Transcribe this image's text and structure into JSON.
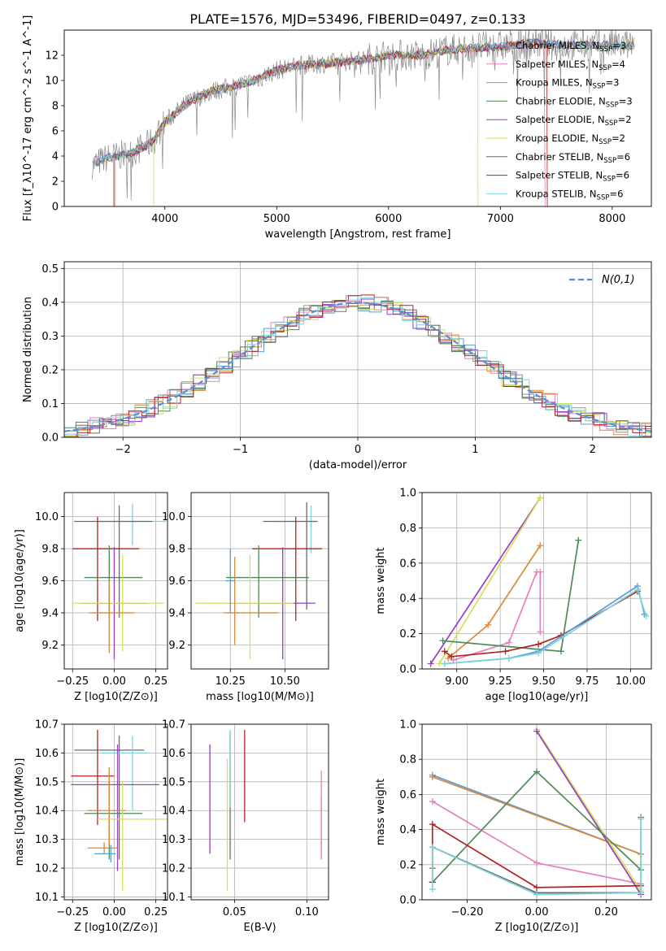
{
  "colors": {
    "Chabrier MILES": "#5a9bd4",
    "Salpeter MILES": "#e87fbf",
    "Kroupa MILES": "#d98a3a",
    "Chabrier ELODIE": "#4d8a5a",
    "Salpeter ELODIE": "#9a3dc1",
    "Kroupa ELODIE": "#d4e05a",
    "Chabrier STELIB": "#6b6b6b",
    "Salpeter STELIB": "#b22222",
    "Kroupa STELIB": "#7fd3d8",
    "gauss": "#5a8fd6"
  },
  "chart_data": [
    {
      "type": "line",
      "panel": "spectrum",
      "title": "PLATE=1576, MJD=53496, FIBERID=0497, z=0.133",
      "xlabel": "wavelength [Angstrom, rest frame]",
      "ylabel": "Flux [f_λ10^-17 erg cm^-2 s^-1 A^-1]",
      "xlim": [
        3100,
        8350
      ],
      "ylim": [
        0,
        14
      ],
      "xticks": [
        4000,
        5000,
        6000,
        7000,
        8000
      ],
      "yticks": [
        0,
        2,
        4,
        6,
        8,
        10,
        12
      ],
      "legend_position": "top-right",
      "series": [
        {
          "name": "Chabrier MILES",
          "nssp": 3
        },
        {
          "name": "Salpeter MILES",
          "nssp": 4
        },
        {
          "name": "Kroupa MILES",
          "nssp": 3
        },
        {
          "name": "Chabrier ELODIE",
          "nssp": 3
        },
        {
          "name": "Salpeter ELODIE",
          "nssp": 2
        },
        {
          "name": "Kroupa ELODIE",
          "nssp": 2
        },
        {
          "name": "Chabrier STELIB",
          "nssp": 6
        },
        {
          "name": "Salpeter STELIB",
          "nssp": 6
        },
        {
          "name": "Kroupa STELIB",
          "nssp": 6
        }
      ],
      "continuum": {
        "x": [
          3350,
          3500,
          3700,
          3900,
          4000,
          4200,
          4400,
          4600,
          4800,
          5000,
          5200,
          5500,
          5800,
          6000,
          6300,
          6500,
          6800,
          7000,
          7300,
          7500
        ],
        "y": [
          3.3,
          3.9,
          4.2,
          5.2,
          6.7,
          8.2,
          9.1,
          9.5,
          10.0,
          10.8,
          11.2,
          11.4,
          11.7,
          12.0,
          12.0,
          12.4,
          12.6,
          12.7,
          13.0,
          12.8
        ]
      }
    },
    {
      "type": "line",
      "panel": "residual histogram",
      "xlabel": "(data-model)/error",
      "ylabel": "Normed distribution",
      "xlim": [
        -2.5,
        2.5
      ],
      "ylim": [
        0,
        0.52
      ],
      "xticks": [
        -2,
        -1,
        0,
        1,
        2
      ],
      "yticks": [
        0.0,
        0.1,
        0.2,
        0.3,
        0.4,
        0.5
      ],
      "legend_position": "top-right",
      "gauss_label": "N(0,1)"
    },
    {
      "type": "scatter",
      "panel": "age vs Z",
      "xlabel": "Z [log10(Z/Z⊙)]",
      "ylabel": "age  [log10(age/yr)]",
      "xlim": [
        -0.3,
        0.32
      ],
      "ylim": [
        9.05,
        10.15
      ],
      "xticks": [
        -0.25,
        0.0,
        0.25
      ],
      "yticks": [
        9.2,
        9.4,
        9.6,
        9.8,
        10.0
      ],
      "points": [
        {
          "series": "Kroupa STELIB",
          "x": 0.11,
          "y": 9.97,
          "xerr": [
            0.2,
            0.2
          ],
          "yerr": [
            0.15,
            0.11
          ]
        },
        {
          "series": "Chabrier STELIB",
          "x": 0.03,
          "y": 9.97,
          "xerr": [
            0.27,
            0.2
          ],
          "yerr": [
            0.6,
            0.1
          ]
        },
        {
          "series": "Salpeter STELIB",
          "x": -0.1,
          "y": 9.8,
          "xerr": [
            0.15,
            0.25
          ],
          "yerr": [
            0.45,
            0.2
          ]
        },
        {
          "series": "Chabrier ELODIE",
          "x": -0.03,
          "y": 9.62,
          "xerr": [
            0.15,
            0.2
          ],
          "yerr": [
            0.25,
            0.2
          ]
        },
        {
          "series": "Salpeter ELODIE",
          "x": 0.0,
          "y": 9.46,
          "xerr": [
            0.2,
            0.2
          ],
          "yerr": [
            0.35,
            0.35
          ]
        },
        {
          "series": "Kroupa ELODIE",
          "x": 0.05,
          "y": 9.46,
          "xerr": [
            0.3,
            0.25
          ],
          "yerr": [
            0.3,
            0.3
          ]
        },
        {
          "series": "Kroupa MILES",
          "x": -0.03,
          "y": 9.4,
          "xerr": [
            0.12,
            0.15
          ],
          "yerr": [
            0.25,
            0.2
          ]
        }
      ]
    },
    {
      "type": "scatter",
      "panel": "age vs mass",
      "xlabel": "mass [log10(M/M⊙)]",
      "xlim": [
        10.07,
        10.7
      ],
      "ylim": [
        9.05,
        10.15
      ],
      "xticks": [
        10.25,
        10.5
      ],
      "yticks": [
        9.2,
        9.4,
        9.6,
        9.8,
        10.0
      ]
    },
    {
      "type": "line",
      "panel": "mass weight vs age",
      "xlabel": "age  [log10(age/yr)]",
      "ylabel": "mass weight",
      "xlim": [
        8.8,
        10.12
      ],
      "ylim": [
        0,
        1.0
      ],
      "xticks": [
        9.0,
        9.25,
        9.5,
        9.75,
        10.0
      ],
      "yticks": [
        0.0,
        0.2,
        0.4,
        0.6,
        0.8,
        1.0
      ],
      "series": [
        {
          "name": "Salpeter ELODIE",
          "x": [
            8.85,
            9.48
          ],
          "y": [
            0.03,
            0.97
          ]
        },
        {
          "name": "Kroupa ELODIE",
          "x": [
            8.9,
            9.48
          ],
          "y": [
            0.03,
            0.97
          ]
        },
        {
          "name": "Kroupa MILES",
          "x": [
            8.95,
            9.18,
            9.48
          ],
          "y": [
            0.06,
            0.25,
            0.7
          ]
        },
        {
          "name": "Salpeter MILES",
          "x": [
            8.98,
            9.3,
            9.46,
            9.48,
            9.48
          ],
          "y": [
            0.05,
            0.15,
            0.55,
            0.55,
            0.21
          ]
        },
        {
          "name": "Chabrier ELODIE",
          "x": [
            8.92,
            9.6,
            9.7
          ],
          "y": [
            0.16,
            0.1,
            0.73
          ]
        },
        {
          "name": "Salpeter STELIB",
          "x": [
            8.93,
            8.97,
            9.28,
            9.47,
            9.6,
            10.04
          ],
          "y": [
            0.1,
            0.07,
            0.1,
            0.14,
            0.19,
            0.44
          ]
        },
        {
          "name": "Chabrier MILES",
          "x": [
            8.93,
            9.3,
            9.47,
            10.04,
            10.08
          ],
          "y": [
            0.03,
            0.06,
            0.1,
            0.47,
            0.31
          ]
        },
        {
          "name": "Kroupa STELIB",
          "x": [
            8.93,
            9.3,
            9.47,
            10.04,
            10.09
          ],
          "y": [
            0.03,
            0.06,
            0.09,
            0.45,
            0.3
          ]
        }
      ]
    },
    {
      "type": "scatter",
      "panel": "mass vs Z",
      "xlabel": "Z [log10(Z/Z⊙)]",
      "ylabel": "mass [log10(M/M⊙)]",
      "xlim": [
        -0.3,
        0.32
      ],
      "ylim": [
        10.09,
        10.7
      ],
      "xticks": [
        -0.25,
        0.0,
        0.25
      ],
      "yticks": [
        10.1,
        10.2,
        10.3,
        10.4,
        10.5,
        10.6,
        10.7
      ]
    },
    {
      "type": "scatter",
      "panel": "mass vs E(B-V)",
      "xlabel": "E(B-V)",
      "xlim": [
        0.02,
        0.115
      ],
      "ylim": [
        10.09,
        10.7
      ],
      "xticks": [
        0.05,
        0.1
      ],
      "yticks": [
        10.1,
        10.2,
        10.3,
        10.4,
        10.5,
        10.6,
        10.7
      ]
    },
    {
      "type": "line",
      "panel": "mass weight vs Z",
      "xlabel": "Z [log10(Z/Z⊙)]",
      "ylabel": "mass weight",
      "xlim": [
        -0.33,
        0.33
      ],
      "ylim": [
        0,
        1.0
      ],
      "xticks": [
        -0.2,
        0.0,
        0.2
      ],
      "yticks": [
        0.0,
        0.2,
        0.4,
        0.6,
        0.8,
        1.0
      ],
      "series": [
        {
          "name": "Chabrier MILES",
          "x": [
            -0.3,
            0.3
          ],
          "y": [
            0.71,
            0.26
          ]
        },
        {
          "name": "Kroupa MILES",
          "x": [
            -0.3,
            0.3
          ],
          "y": [
            0.7,
            0.26
          ]
        },
        {
          "name": "Salpeter MILES",
          "x": [
            -0.3,
            0.0,
            0.3
          ],
          "y": [
            0.56,
            0.21,
            0.09
          ]
        },
        {
          "name": "Kroupa ELODIE",
          "x": [
            0.0,
            0.3
          ],
          "y": [
            0.97,
            0.05
          ]
        },
        {
          "name": "Salpeter ELODIE",
          "x": [
            0.0,
            0.3
          ],
          "y": [
            0.96,
            0.03
          ]
        },
        {
          "name": "Chabrier ELODIE",
          "x": [
            -0.3,
            0.0,
            0.3
          ],
          "y": [
            0.1,
            0.73,
            0.17
          ]
        },
        {
          "name": "Salpeter STELIB",
          "x": [
            -0.3,
            -0.3,
            0.0,
            0.3
          ],
          "y": [
            0.1,
            0.43,
            0.07,
            0.08
          ]
        },
        {
          "name": "Chabrier STELIB",
          "x": [
            -0.3,
            -0.3,
            0.0,
            0.3,
            0.3
          ],
          "y": [
            0.18,
            0.3,
            0.04,
            0.04,
            0.47
          ]
        },
        {
          "name": "Kroupa STELIB",
          "x": [
            -0.3,
            -0.3,
            0.0,
            0.3,
            0.3
          ],
          "y": [
            0.06,
            0.3,
            0.03,
            0.04,
            0.46
          ]
        }
      ]
    }
  ]
}
